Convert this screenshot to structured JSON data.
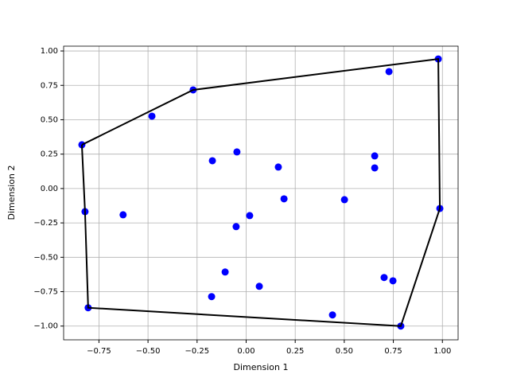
{
  "chart_data": {
    "type": "scatter",
    "xlabel": "Dimension 1",
    "ylabel": "Dimension 2",
    "xlim": [
      -0.93,
      1.08
    ],
    "ylim": [
      -1.1,
      1.035
    ],
    "grid": true,
    "xticks": [
      {
        "value": -0.75,
        "label": "−0.75"
      },
      {
        "value": -0.5,
        "label": "−0.50"
      },
      {
        "value": -0.25,
        "label": "−0.25"
      },
      {
        "value": 0,
        "label": "0.00"
      },
      {
        "value": 0.25,
        "label": "0.25"
      },
      {
        "value": 0.5,
        "label": "0.50"
      },
      {
        "value": 0.75,
        "label": "0.75"
      },
      {
        "value": 1,
        "label": "1.00"
      }
    ],
    "yticks": [
      {
        "value": -1,
        "label": "−1.00"
      },
      {
        "value": -0.75,
        "label": "−0.75"
      },
      {
        "value": -0.5,
        "label": "−0.50"
      },
      {
        "value": -0.25,
        "label": "−0.25"
      },
      {
        "value": 0,
        "label": "0.00"
      },
      {
        "value": 0.25,
        "label": "0.25"
      },
      {
        "value": 0.5,
        "label": "0.50"
      },
      {
        "value": 0.75,
        "label": "0.75"
      },
      {
        "value": 1,
        "label": "1.00"
      }
    ],
    "points": {
      "color": "blue",
      "x": [
        -0.837,
        -0.27,
        0.979,
        0.987,
        0.788,
        -0.805,
        -0.821,
        -0.48,
        0.728,
        -0.047,
        -0.172,
        0.164,
        0.655,
        0.655,
        0.193,
        0.501,
        -0.627,
        0.018,
        -0.051,
        -0.107,
        0.067,
        -0.176,
        0.703,
        0.748,
        0.44
      ],
      "y": [
        0.318,
        0.717,
        0.942,
        -0.145,
        -1.0,
        -0.867,
        -0.168,
        0.526,
        0.85,
        0.266,
        0.202,
        0.156,
        0.237,
        0.15,
        -0.075,
        -0.081,
        -0.191,
        -0.197,
        -0.277,
        -0.607,
        -0.711,
        -0.786,
        -0.647,
        -0.671,
        -0.919
      ]
    },
    "hull": {
      "color": "black",
      "x": [
        -0.837,
        -0.27,
        0.979,
        0.987,
        0.788,
        -0.805,
        -0.821,
        -0.837
      ],
      "y": [
        0.318,
        0.717,
        0.942,
        -0.145,
        -1.0,
        -0.867,
        -0.168,
        0.318
      ]
    }
  }
}
